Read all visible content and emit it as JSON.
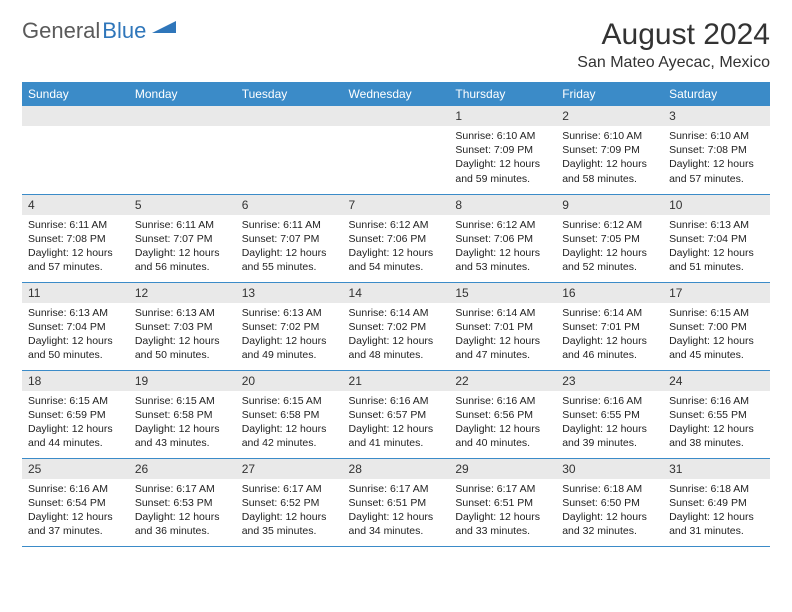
{
  "logo": {
    "text1": "General",
    "text2": "Blue"
  },
  "title": "August 2024",
  "location": "San Mateo Ayecac, Mexico",
  "colors": {
    "header_bg": "#3b8bc8",
    "header_text": "#ffffff",
    "daynum_bg": "#e9e9e9",
    "border": "#3b8bc8",
    "logo_gray": "#5a5a5a",
    "logo_blue": "#2f76ba"
  },
  "day_headers": [
    "Sunday",
    "Monday",
    "Tuesday",
    "Wednesday",
    "Thursday",
    "Friday",
    "Saturday"
  ],
  "weeks": [
    [
      null,
      null,
      null,
      null,
      {
        "n": "1",
        "sr": "6:10 AM",
        "ss": "7:09 PM",
        "dl": "12 hours and 59 minutes."
      },
      {
        "n": "2",
        "sr": "6:10 AM",
        "ss": "7:09 PM",
        "dl": "12 hours and 58 minutes."
      },
      {
        "n": "3",
        "sr": "6:10 AM",
        "ss": "7:08 PM",
        "dl": "12 hours and 57 minutes."
      }
    ],
    [
      {
        "n": "4",
        "sr": "6:11 AM",
        "ss": "7:08 PM",
        "dl": "12 hours and 57 minutes."
      },
      {
        "n": "5",
        "sr": "6:11 AM",
        "ss": "7:07 PM",
        "dl": "12 hours and 56 minutes."
      },
      {
        "n": "6",
        "sr": "6:11 AM",
        "ss": "7:07 PM",
        "dl": "12 hours and 55 minutes."
      },
      {
        "n": "7",
        "sr": "6:12 AM",
        "ss": "7:06 PM",
        "dl": "12 hours and 54 minutes."
      },
      {
        "n": "8",
        "sr": "6:12 AM",
        "ss": "7:06 PM",
        "dl": "12 hours and 53 minutes."
      },
      {
        "n": "9",
        "sr": "6:12 AM",
        "ss": "7:05 PM",
        "dl": "12 hours and 52 minutes."
      },
      {
        "n": "10",
        "sr": "6:13 AM",
        "ss": "7:04 PM",
        "dl": "12 hours and 51 minutes."
      }
    ],
    [
      {
        "n": "11",
        "sr": "6:13 AM",
        "ss": "7:04 PM",
        "dl": "12 hours and 50 minutes."
      },
      {
        "n": "12",
        "sr": "6:13 AM",
        "ss": "7:03 PM",
        "dl": "12 hours and 50 minutes."
      },
      {
        "n": "13",
        "sr": "6:13 AM",
        "ss": "7:02 PM",
        "dl": "12 hours and 49 minutes."
      },
      {
        "n": "14",
        "sr": "6:14 AM",
        "ss": "7:02 PM",
        "dl": "12 hours and 48 minutes."
      },
      {
        "n": "15",
        "sr": "6:14 AM",
        "ss": "7:01 PM",
        "dl": "12 hours and 47 minutes."
      },
      {
        "n": "16",
        "sr": "6:14 AM",
        "ss": "7:01 PM",
        "dl": "12 hours and 46 minutes."
      },
      {
        "n": "17",
        "sr": "6:15 AM",
        "ss": "7:00 PM",
        "dl": "12 hours and 45 minutes."
      }
    ],
    [
      {
        "n": "18",
        "sr": "6:15 AM",
        "ss": "6:59 PM",
        "dl": "12 hours and 44 minutes."
      },
      {
        "n": "19",
        "sr": "6:15 AM",
        "ss": "6:58 PM",
        "dl": "12 hours and 43 minutes."
      },
      {
        "n": "20",
        "sr": "6:15 AM",
        "ss": "6:58 PM",
        "dl": "12 hours and 42 minutes."
      },
      {
        "n": "21",
        "sr": "6:16 AM",
        "ss": "6:57 PM",
        "dl": "12 hours and 41 minutes."
      },
      {
        "n": "22",
        "sr": "6:16 AM",
        "ss": "6:56 PM",
        "dl": "12 hours and 40 minutes."
      },
      {
        "n": "23",
        "sr": "6:16 AM",
        "ss": "6:55 PM",
        "dl": "12 hours and 39 minutes."
      },
      {
        "n": "24",
        "sr": "6:16 AM",
        "ss": "6:55 PM",
        "dl": "12 hours and 38 minutes."
      }
    ],
    [
      {
        "n": "25",
        "sr": "6:16 AM",
        "ss": "6:54 PM",
        "dl": "12 hours and 37 minutes."
      },
      {
        "n": "26",
        "sr": "6:17 AM",
        "ss": "6:53 PM",
        "dl": "12 hours and 36 minutes."
      },
      {
        "n": "27",
        "sr": "6:17 AM",
        "ss": "6:52 PM",
        "dl": "12 hours and 35 minutes."
      },
      {
        "n": "28",
        "sr": "6:17 AM",
        "ss": "6:51 PM",
        "dl": "12 hours and 34 minutes."
      },
      {
        "n": "29",
        "sr": "6:17 AM",
        "ss": "6:51 PM",
        "dl": "12 hours and 33 minutes."
      },
      {
        "n": "30",
        "sr": "6:18 AM",
        "ss": "6:50 PM",
        "dl": "12 hours and 32 minutes."
      },
      {
        "n": "31",
        "sr": "6:18 AM",
        "ss": "6:49 PM",
        "dl": "12 hours and 31 minutes."
      }
    ]
  ],
  "labels": {
    "sunrise": "Sunrise:",
    "sunset": "Sunset:",
    "daylight": "Daylight:"
  }
}
